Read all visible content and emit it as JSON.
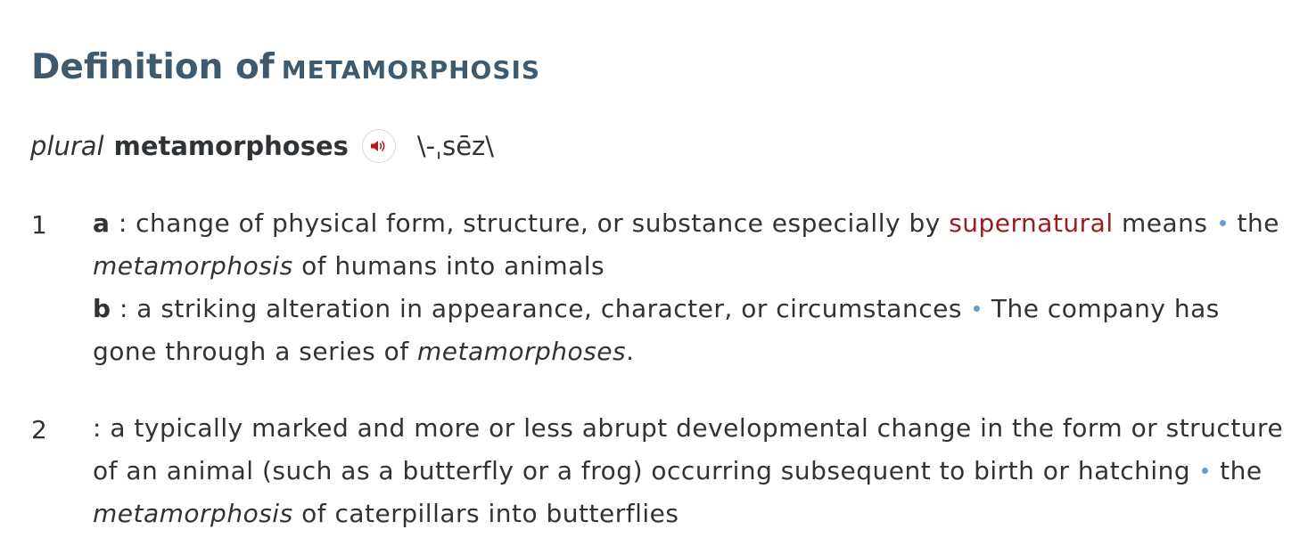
{
  "header": {
    "title_prefix": "Definition of",
    "headword": "METAMORPHOSIS"
  },
  "inflection_line": {
    "label": "plural",
    "form": "metamorphoses",
    "sound_icon": "speaker-icon",
    "pronunciation": "\\-ˌsēz\\"
  },
  "colors": {
    "title": "#3f5a6e",
    "text": "#303336",
    "link": "#9b1b1e",
    "bullet": "#6b9bc7"
  },
  "senses": [
    {
      "number": "1",
      "subsenses": [
        {
          "letter": "a",
          "def_before_link": ": change of physical form, structure, or substance especially by ",
          "link": "supernatural",
          "def_after_link": " means",
          "example_before": "the ",
          "example_italic": "metamorphosis",
          "example_after": " of humans into animals"
        },
        {
          "letter": "b",
          "definition": ": a striking alteration in appearance, character, or circumstances",
          "example_before": "The company has gone through a series of ",
          "example_italic": "metamorphoses",
          "example_after": "."
        }
      ]
    },
    {
      "number": "2",
      "definition": ": a typically marked and more or less abrupt developmental change in the form or structure of an animal (such as a butterfly or a frog) occurring subsequent to birth or hatching",
      "example_before": "the ",
      "example_italic": "metamorphosis",
      "example_after": " of caterpillars into butterflies"
    }
  ]
}
